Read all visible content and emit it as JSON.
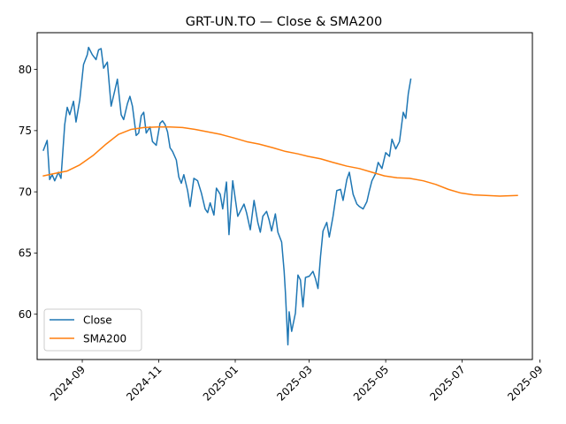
{
  "chart_data": {
    "type": "line",
    "title": "GRT-UN.TO — Close & SMA200",
    "xlabel": "",
    "ylabel": "",
    "x_range": [
      "2024-07-27",
      "2025-08-26"
    ],
    "ylim": [
      56.3,
      83.0
    ],
    "yticks": [
      60,
      65,
      70,
      75,
      80
    ],
    "xticks": [
      {
        "date": "2024-09-01",
        "label": "2024-09"
      },
      {
        "date": "2024-11-01",
        "label": "2024-11"
      },
      {
        "date": "2025-01-01",
        "label": "2025-01"
      },
      {
        "date": "2025-03-01",
        "label": "2025-03"
      },
      {
        "date": "2025-05-01",
        "label": "2025-05"
      },
      {
        "date": "2025-07-01",
        "label": "2025-07"
      },
      {
        "date": "2025-09-01",
        "label": "2025-09"
      }
    ],
    "grid": false,
    "legend_position": "lower-left",
    "series": [
      {
        "name": "Close",
        "color": "#1f77b4",
        "points": [
          [
            "2024-08-01",
            73.4
          ],
          [
            "2024-08-04",
            74.2
          ],
          [
            "2024-08-06",
            71.0
          ],
          [
            "2024-08-08",
            71.4
          ],
          [
            "2024-08-10",
            70.9
          ],
          [
            "2024-08-13",
            71.6
          ],
          [
            "2024-08-15",
            71.1
          ],
          [
            "2024-08-18",
            75.5
          ],
          [
            "2024-08-20",
            76.9
          ],
          [
            "2024-08-22",
            76.3
          ],
          [
            "2024-08-25",
            77.4
          ],
          [
            "2024-08-27",
            75.7
          ],
          [
            "2024-08-30",
            77.5
          ],
          [
            "2024-09-02",
            80.4
          ],
          [
            "2024-09-05",
            81.2
          ],
          [
            "2024-09-06",
            81.8
          ],
          [
            "2024-09-09",
            81.2
          ],
          [
            "2024-09-12",
            80.8
          ],
          [
            "2024-09-14",
            81.6
          ],
          [
            "2024-09-16",
            81.7
          ],
          [
            "2024-09-18",
            80.1
          ],
          [
            "2024-09-21",
            80.6
          ],
          [
            "2024-09-24",
            77.0
          ],
          [
            "2024-09-27",
            78.3
          ],
          [
            "2024-09-29",
            79.2
          ],
          [
            "2024-10-02",
            76.3
          ],
          [
            "2024-10-04",
            75.9
          ],
          [
            "2024-10-07",
            77.2
          ],
          [
            "2024-10-09",
            77.8
          ],
          [
            "2024-10-11",
            77.0
          ],
          [
            "2024-10-14",
            74.6
          ],
          [
            "2024-10-16",
            74.8
          ],
          [
            "2024-10-18",
            76.2
          ],
          [
            "2024-10-20",
            76.5
          ],
          [
            "2024-10-22",
            74.8
          ],
          [
            "2024-10-25",
            75.3
          ],
          [
            "2024-10-27",
            74.1
          ],
          [
            "2024-10-30",
            73.8
          ],
          [
            "2024-11-02",
            75.6
          ],
          [
            "2024-11-04",
            75.8
          ],
          [
            "2024-11-06",
            75.5
          ],
          [
            "2024-11-08",
            74.9
          ],
          [
            "2024-11-10",
            73.6
          ],
          [
            "2024-11-12",
            73.3
          ],
          [
            "2024-11-15",
            72.6
          ],
          [
            "2024-11-17",
            71.2
          ],
          [
            "2024-11-19",
            70.7
          ],
          [
            "2024-11-21",
            71.4
          ],
          [
            "2024-11-24",
            70.1
          ],
          [
            "2024-11-26",
            68.8
          ],
          [
            "2024-11-29",
            71.1
          ],
          [
            "2024-12-02",
            70.9
          ],
          [
            "2024-12-05",
            69.9
          ],
          [
            "2024-12-08",
            68.6
          ],
          [
            "2024-12-10",
            68.3
          ],
          [
            "2024-12-12",
            69.1
          ],
          [
            "2024-12-15",
            68.1
          ],
          [
            "2024-12-17",
            70.3
          ],
          [
            "2024-12-20",
            69.8
          ],
          [
            "2024-12-22",
            68.6
          ],
          [
            "2024-12-25",
            70.8
          ],
          [
            "2024-12-27",
            66.5
          ],
          [
            "2024-12-30",
            70.9
          ],
          [
            "2025-01-03",
            68.0
          ],
          [
            "2025-01-05",
            68.4
          ],
          [
            "2025-01-08",
            69.0
          ],
          [
            "2025-01-10",
            68.3
          ],
          [
            "2025-01-13",
            66.9
          ],
          [
            "2025-01-16",
            69.3
          ],
          [
            "2025-01-19",
            67.5
          ],
          [
            "2025-01-21",
            66.7
          ],
          [
            "2025-01-23",
            68.0
          ],
          [
            "2025-01-26",
            68.4
          ],
          [
            "2025-01-28",
            67.7
          ],
          [
            "2025-01-30",
            66.8
          ],
          [
            "2025-02-02",
            68.2
          ],
          [
            "2025-02-04",
            66.7
          ],
          [
            "2025-02-07",
            65.9
          ],
          [
            "2025-02-09",
            63.5
          ],
          [
            "2025-02-10",
            61.8
          ],
          [
            "2025-02-12",
            57.5
          ],
          [
            "2025-02-13",
            60.2
          ],
          [
            "2025-02-15",
            58.6
          ],
          [
            "2025-02-18",
            60.1
          ],
          [
            "2025-02-20",
            63.2
          ],
          [
            "2025-02-22",
            62.8
          ],
          [
            "2025-02-24",
            60.6
          ],
          [
            "2025-02-26",
            63.0
          ],
          [
            "2025-03-01",
            63.1
          ],
          [
            "2025-03-04",
            63.5
          ],
          [
            "2025-03-06",
            62.9
          ],
          [
            "2025-03-08",
            62.1
          ],
          [
            "2025-03-10",
            64.7
          ],
          [
            "2025-03-12",
            66.8
          ],
          [
            "2025-03-15",
            67.5
          ],
          [
            "2025-03-17",
            66.3
          ],
          [
            "2025-03-20",
            68.0
          ],
          [
            "2025-03-23",
            70.1
          ],
          [
            "2025-03-26",
            70.2
          ],
          [
            "2025-03-28",
            69.3
          ],
          [
            "2025-03-31",
            71.0
          ],
          [
            "2025-04-02",
            71.6
          ],
          [
            "2025-04-05",
            69.8
          ],
          [
            "2025-04-08",
            69.0
          ],
          [
            "2025-04-10",
            68.8
          ],
          [
            "2025-04-13",
            68.6
          ],
          [
            "2025-04-16",
            69.2
          ],
          [
            "2025-04-18",
            70.1
          ],
          [
            "2025-04-20",
            70.9
          ],
          [
            "2025-04-23",
            71.5
          ],
          [
            "2025-04-25",
            72.4
          ],
          [
            "2025-04-28",
            71.9
          ],
          [
            "2025-05-01",
            73.2
          ],
          [
            "2025-05-04",
            72.9
          ],
          [
            "2025-05-06",
            74.3
          ],
          [
            "2025-05-09",
            73.5
          ],
          [
            "2025-05-12",
            74.1
          ],
          [
            "2025-05-15",
            76.5
          ],
          [
            "2025-05-17",
            76.0
          ],
          [
            "2025-05-19",
            78.0
          ],
          [
            "2025-05-21",
            79.2
          ]
        ]
      },
      {
        "name": "SMA200",
        "color": "#ff7f0e",
        "points": [
          [
            "2024-08-01",
            71.3
          ],
          [
            "2024-08-10",
            71.5
          ],
          [
            "2024-08-20",
            71.7
          ],
          [
            "2024-08-30",
            72.2
          ],
          [
            "2024-09-10",
            73.0
          ],
          [
            "2024-09-20",
            73.9
          ],
          [
            "2024-09-30",
            74.7
          ],
          [
            "2024-10-10",
            75.1
          ],
          [
            "2024-10-20",
            75.25
          ],
          [
            "2024-10-31",
            75.3
          ],
          [
            "2024-11-10",
            75.3
          ],
          [
            "2024-11-20",
            75.25
          ],
          [
            "2024-11-30",
            75.1
          ],
          [
            "2024-12-10",
            74.9
          ],
          [
            "2024-12-20",
            74.7
          ],
          [
            "2024-12-31",
            74.4
          ],
          [
            "2025-01-10",
            74.1
          ],
          [
            "2025-01-20",
            73.9
          ],
          [
            "2025-01-31",
            73.6
          ],
          [
            "2025-02-10",
            73.3
          ],
          [
            "2025-02-20",
            73.1
          ],
          [
            "2025-02-28",
            72.9
          ],
          [
            "2025-03-10",
            72.7
          ],
          [
            "2025-03-20",
            72.4
          ],
          [
            "2025-03-31",
            72.1
          ],
          [
            "2025-04-10",
            71.9
          ],
          [
            "2025-04-20",
            71.6
          ],
          [
            "2025-04-30",
            71.3
          ],
          [
            "2025-05-10",
            71.15
          ],
          [
            "2025-05-20",
            71.1
          ],
          [
            "2025-05-31",
            70.9
          ],
          [
            "2025-06-10",
            70.6
          ],
          [
            "2025-06-20",
            70.2
          ],
          [
            "2025-06-30",
            69.9
          ],
          [
            "2025-07-10",
            69.75
          ],
          [
            "2025-07-20",
            69.7
          ],
          [
            "2025-07-31",
            69.65
          ],
          [
            "2025-08-14",
            69.7
          ]
        ]
      }
    ]
  }
}
